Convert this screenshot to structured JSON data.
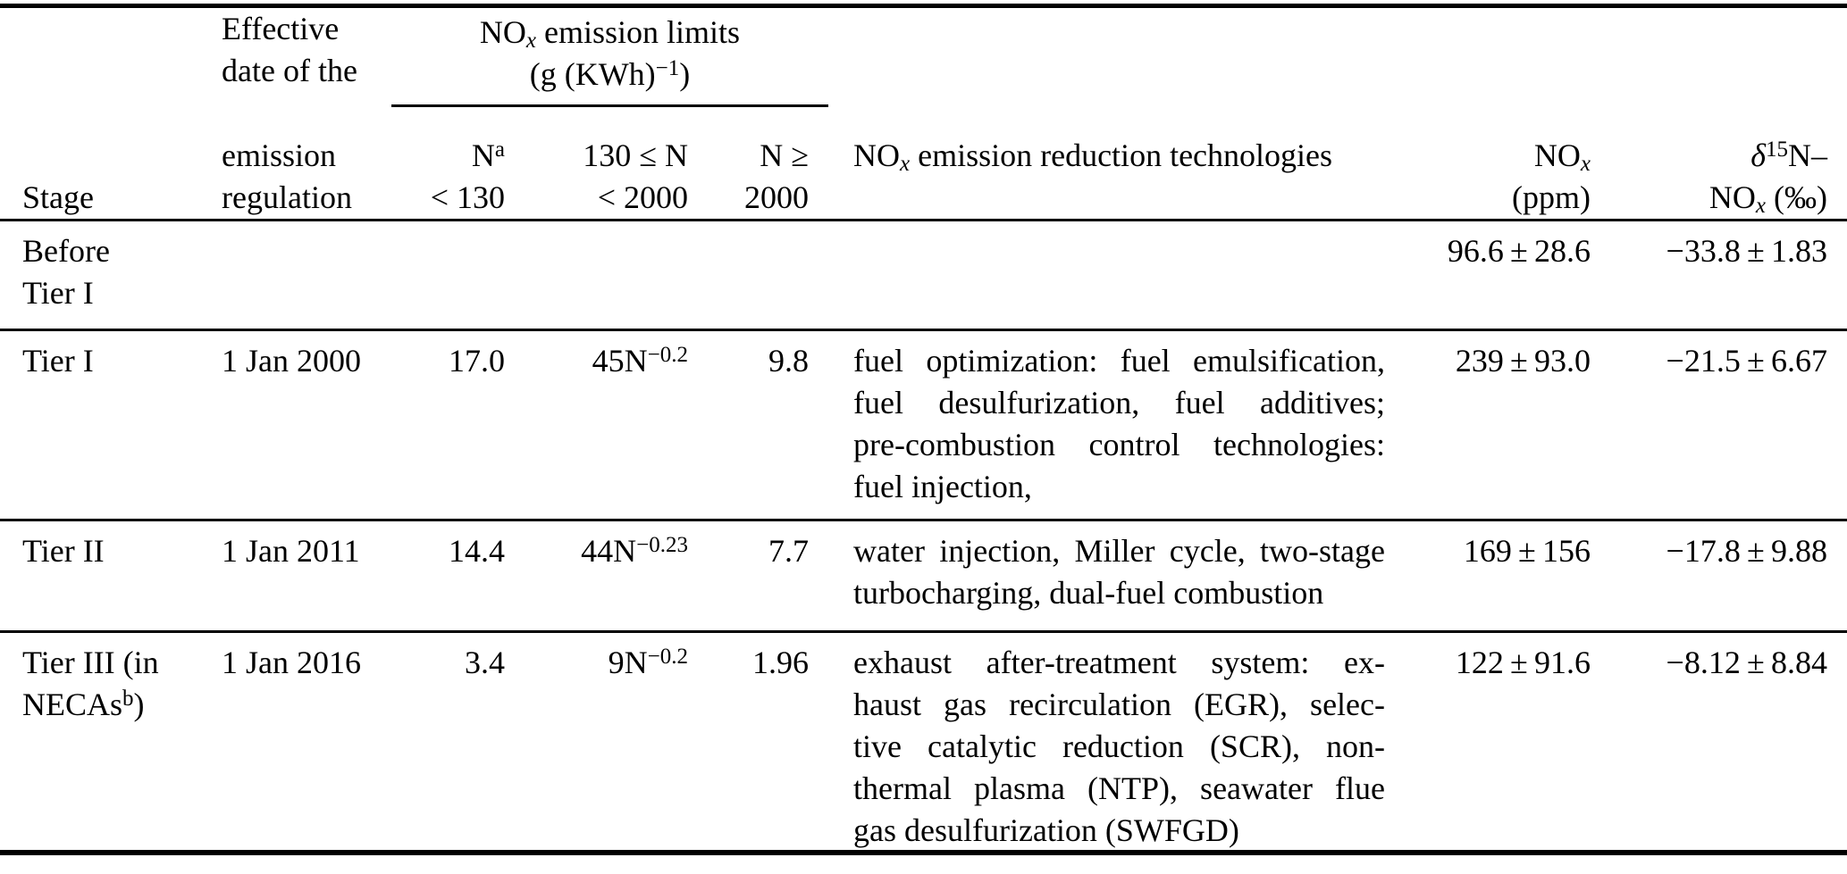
{
  "table": {
    "header": {
      "stage_label": "Stage",
      "effective_top": [
        "Effective",
        "date of the"
      ],
      "effective_bottom": [
        "emission",
        "regulation"
      ],
      "limits_title_lines": [
        "NO<sub><i>x</i></sub> emission limits",
        "(g (KWh)<sup>−1</sup>)"
      ],
      "sub_n_small_lines": [
        "N<sup>a</sup>",
        "&lt; 130"
      ],
      "sub_n_mid_lines": [
        "130 ≤ N",
        "&lt; 2000"
      ],
      "sub_n_large_lines": [
        "N ≥",
        "2000"
      ],
      "tech_label": "NO<sub><i>x</i></sub> emission reduction technologies",
      "nox_ppm_lines": [
        "NO<sub><i>x</i></sub>",
        "(ppm)"
      ],
      "delta_lines": [
        "<i>δ</i><sup>15</sup>N–",
        "NO<sub><i>x</i></sub> (‰)"
      ]
    },
    "rows": [
      {
        "stage_lines": [
          "Before",
          "Tier I"
        ],
        "date": "",
        "limit_n_small": "",
        "limit_n_mid": "",
        "limit_n_large": "",
        "tech_lines": [],
        "nox_ppm": "96.6 ± 28.6",
        "delta15n": "−33.8 ± 1.83"
      },
      {
        "stage_lines": [
          "Tier I"
        ],
        "date": "1 Jan 2000",
        "limit_n_small": "17.0",
        "limit_n_mid": "45N<sup>−0.2</sup>",
        "limit_n_large": "9.8",
        "tech_lines": [
          "fuel optimization: fuel emulsification,",
          "fuel desulfurization, fuel additives;",
          "pre-combustion control technologies:",
          "fuel injection,"
        ],
        "nox_ppm": "239 ± 93.0",
        "delta15n": "−21.5 ± 6.67"
      },
      {
        "stage_lines": [
          "Tier II"
        ],
        "date": "1 Jan 2011",
        "limit_n_small": "14.4",
        "limit_n_mid": "44N<sup>−0.23</sup>",
        "limit_n_large": "7.7",
        "tech_lines": [
          "water injection, Miller cycle, two-stage",
          "turbocharging, dual-fuel combustion"
        ],
        "nox_ppm": "169 ± 156",
        "delta15n": "−17.8 ± 9.88"
      },
      {
        "stage_lines": [
          "Tier III (in",
          "NECAs<sup>b</sup>)"
        ],
        "date": "1 Jan 2016",
        "limit_n_small": "3.4",
        "limit_n_mid": "9N<sup>−0.2</sup>",
        "limit_n_large": "1.96",
        "tech_lines": [
          "exhaust after-treatment system: ex-",
          "haust gas recirculation (EGR), selec-",
          "tive catalytic reduction (SCR), non-",
          "thermal plasma (NTP), seawater flue",
          "gas desulfurization (SWFGD)"
        ],
        "nox_ppm": "122 ± 91.6",
        "delta15n": "−8.12 ± 8.84"
      }
    ]
  }
}
